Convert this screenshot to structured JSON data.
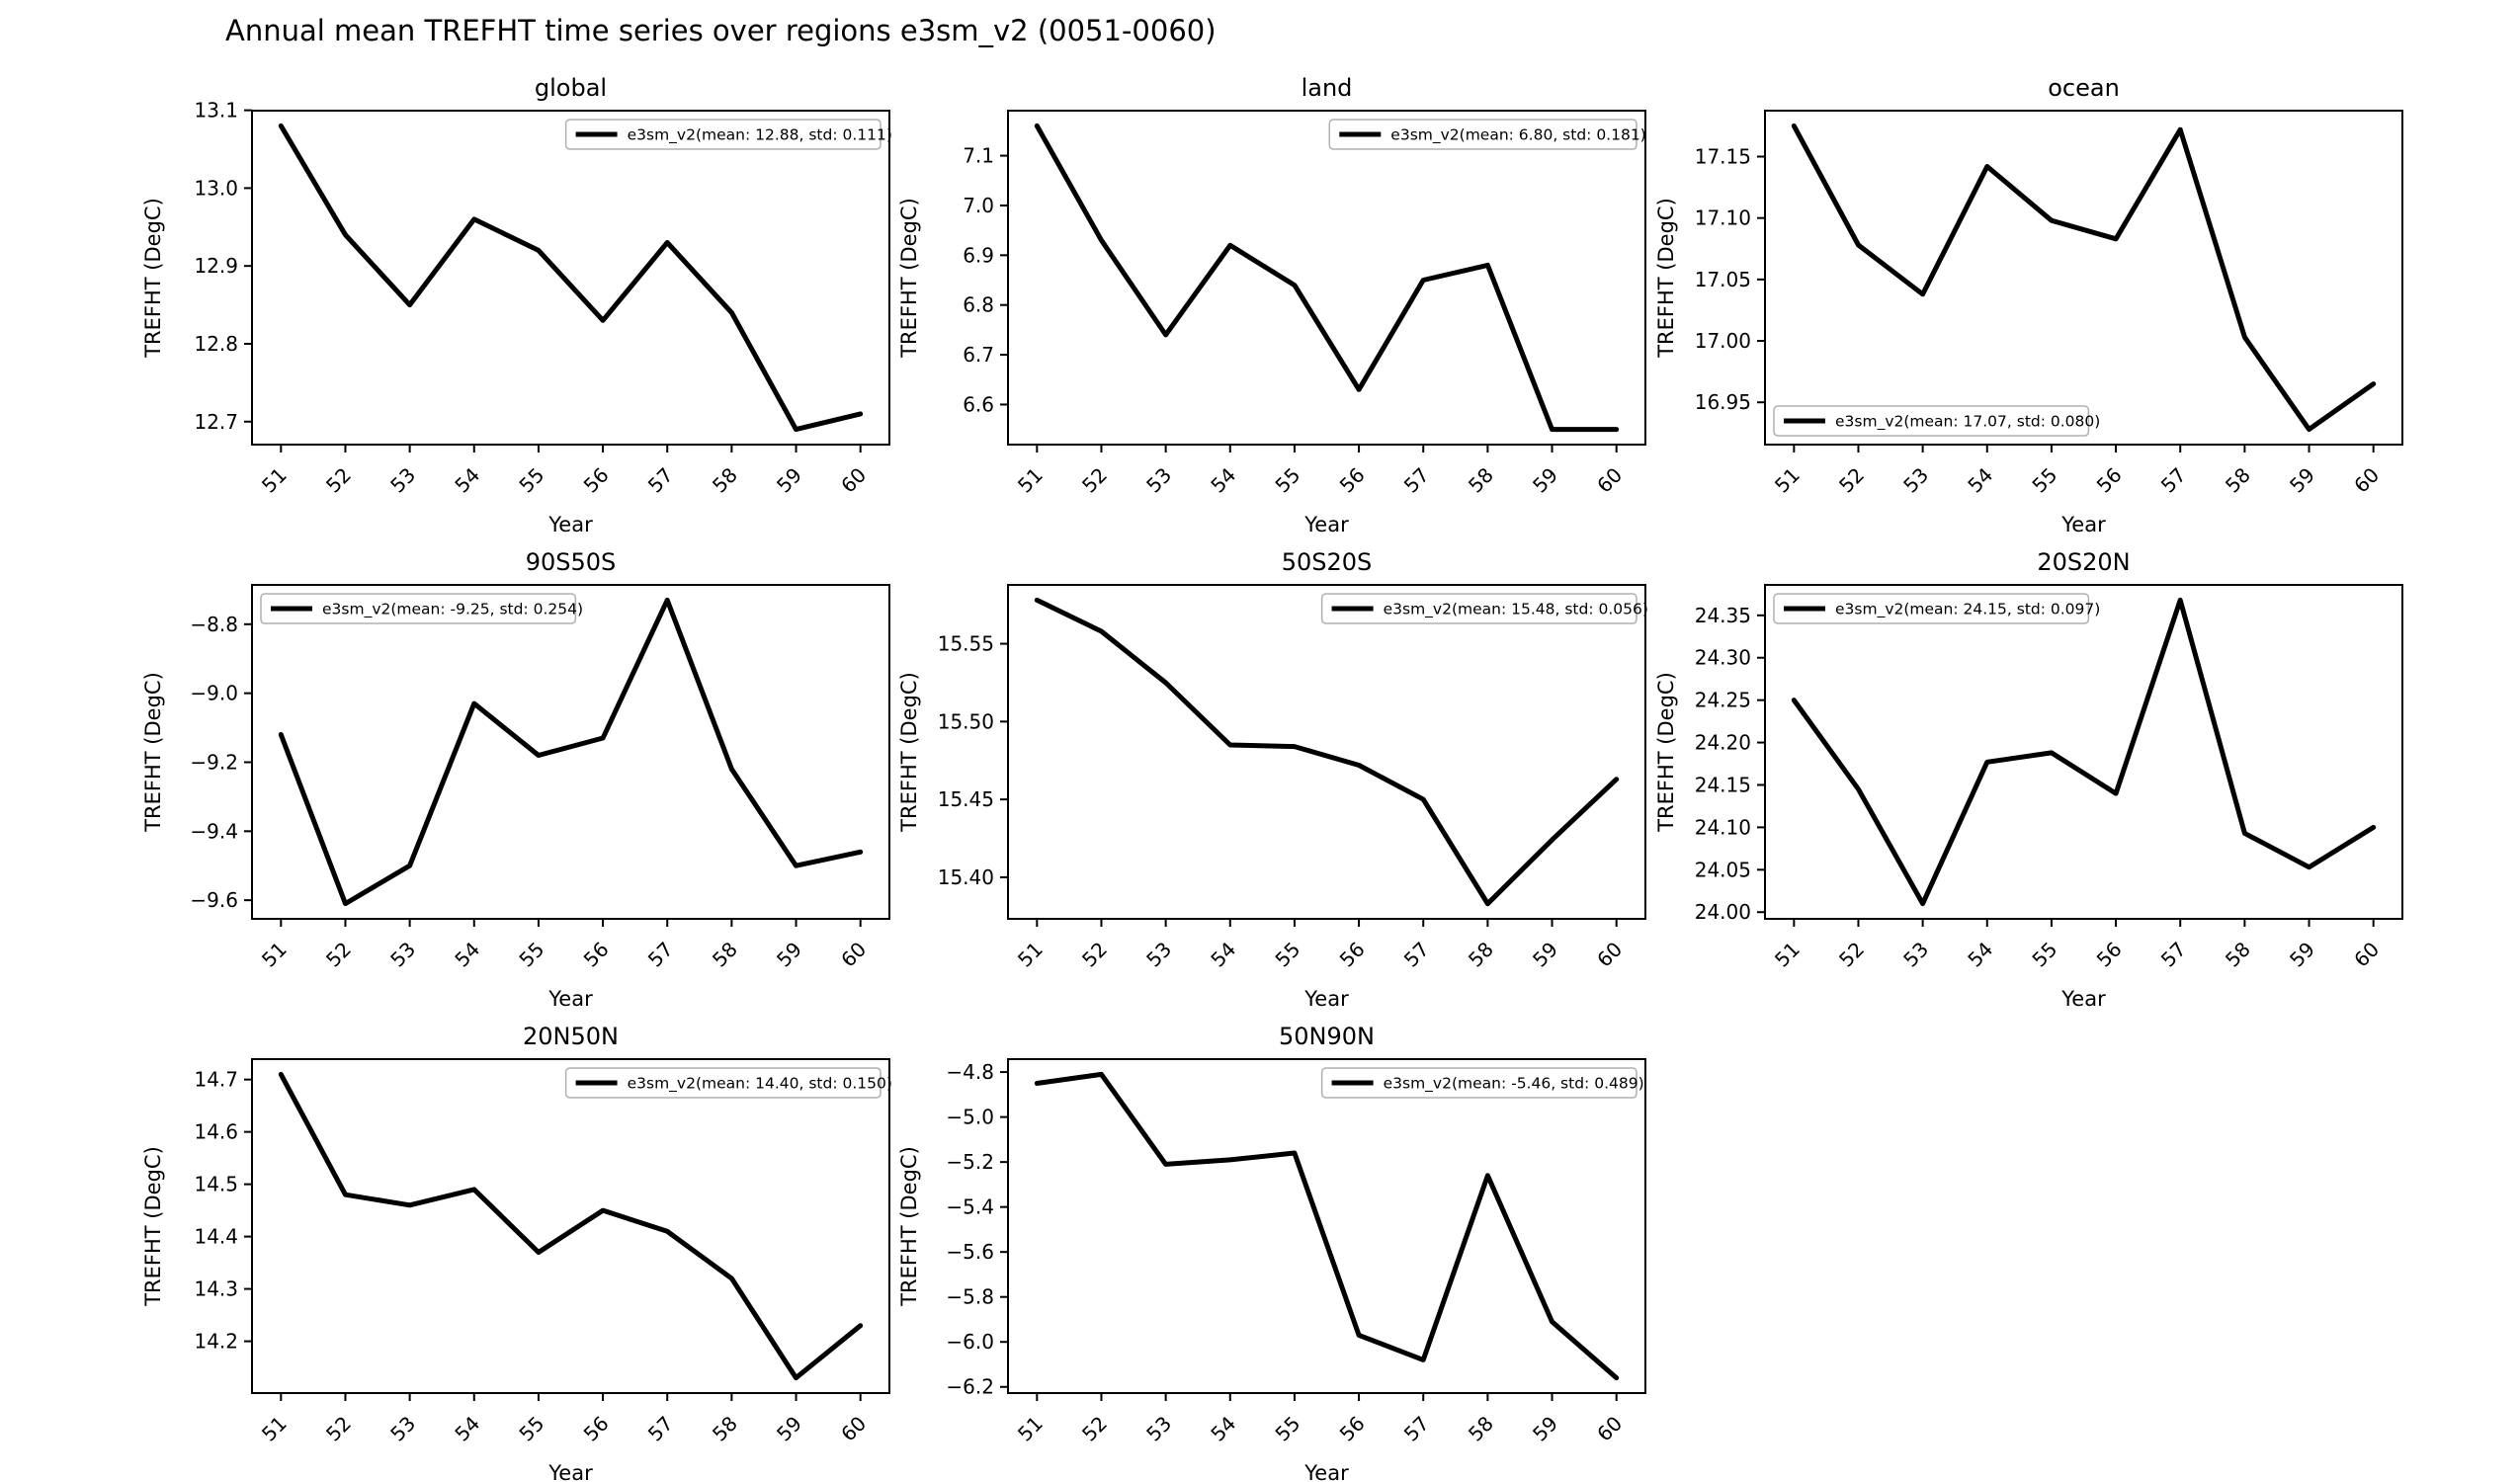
{
  "figure_title": "Annual mean TREFHT time series over regions e3sm_v2 (0051-0060)",
  "series_name": "e3sm_v2",
  "line_color": "#000000",
  "background_color": "#ffffff",
  "legend_border_color": "#b0b0b0",
  "chart_data": [
    {
      "type": "line",
      "title": "global",
      "xlabel": "Year",
      "ylabel": "TREFHT (DegC)",
      "x": [
        51,
        52,
        53,
        54,
        55,
        56,
        57,
        58,
        59,
        60
      ],
      "xtick_labels": [
        "51",
        "52",
        "53",
        "54",
        "55",
        "56",
        "57",
        "58",
        "59",
        "60"
      ],
      "values": [
        13.08,
        12.94,
        12.85,
        12.96,
        12.92,
        12.83,
        12.93,
        12.84,
        12.69,
        12.71
      ],
      "legend_label": "e3sm_v2(mean: 12.88, std: 0.111)",
      "legend_pos": "upper-right",
      "ytick_values": [
        12.7,
        12.8,
        12.9,
        13.0,
        13.1
      ],
      "ytick_labels": [
        "12.7",
        "12.8",
        "12.9",
        "13.0",
        "13.1"
      ],
      "ylim": [
        12.6705,
        13.0995
      ],
      "xlim": [
        50.55,
        60.45
      ],
      "grid": false,
      "row": 0,
      "col": 0
    },
    {
      "type": "line",
      "title": "land",
      "xlabel": "Year",
      "ylabel": "TREFHT (DegC)",
      "x": [
        51,
        52,
        53,
        54,
        55,
        56,
        57,
        58,
        59,
        60
      ],
      "xtick_labels": [
        "51",
        "52",
        "53",
        "54",
        "55",
        "56",
        "57",
        "58",
        "59",
        "60"
      ],
      "values": [
        7.16,
        6.93,
        6.74,
        6.92,
        6.84,
        6.63,
        6.85,
        6.88,
        6.55,
        6.55
      ],
      "legend_label": "e3sm_v2(mean: 6.80, std: 0.181)",
      "legend_pos": "upper-right",
      "ytick_values": [
        6.6,
        6.7,
        6.8,
        6.9,
        7.0,
        7.1
      ],
      "ytick_labels": [
        "6.6",
        "6.7",
        "6.8",
        "6.9",
        "7.0",
        "7.1"
      ],
      "ylim": [
        6.5195,
        7.1905
      ],
      "xlim": [
        50.55,
        60.45
      ],
      "grid": false,
      "row": 0,
      "col": 1
    },
    {
      "type": "line",
      "title": "ocean",
      "xlabel": "Year",
      "ylabel": "TREFHT (DegC)",
      "x": [
        51,
        52,
        53,
        54,
        55,
        56,
        57,
        58,
        59,
        60
      ],
      "xtick_labels": [
        "51",
        "52",
        "53",
        "54",
        "55",
        "56",
        "57",
        "58",
        "59",
        "60"
      ],
      "values": [
        17.175,
        17.078,
        17.038,
        17.142,
        17.098,
        17.083,
        17.172,
        17.003,
        16.928,
        16.965
      ],
      "legend_label": "e3sm_v2(mean: 17.07, std: 0.080)",
      "legend_pos": "lower-left",
      "ytick_values": [
        16.95,
        17.0,
        17.05,
        17.1,
        17.15
      ],
      "ytick_labels": [
        "16.95",
        "17.00",
        "17.05",
        "17.10",
        "17.15"
      ],
      "ylim": [
        16.9156,
        17.1874
      ],
      "xlim": [
        50.55,
        60.45
      ],
      "grid": false,
      "row": 0,
      "col": 2
    },
    {
      "type": "line",
      "title": "90S50S",
      "xlabel": "Year",
      "ylabel": "TREFHT (DegC)",
      "x": [
        51,
        52,
        53,
        54,
        55,
        56,
        57,
        58,
        59,
        60
      ],
      "xtick_labels": [
        "51",
        "52",
        "53",
        "54",
        "55",
        "56",
        "57",
        "58",
        "59",
        "60"
      ],
      "values": [
        -9.12,
        -9.61,
        -9.5,
        -9.03,
        -9.18,
        -9.13,
        -8.73,
        -9.22,
        -9.5,
        -9.46
      ],
      "legend_label": "e3sm_v2(mean: -9.25, std: 0.254)",
      "legend_pos": "upper-left",
      "ytick_values": [
        -9.6,
        -9.4,
        -9.2,
        -9.0,
        -8.8
      ],
      "ytick_labels": [
        "−9.6",
        "−9.4",
        "−9.2",
        "−9.0",
        "−8.8"
      ],
      "ylim": [
        -9.654,
        -8.686
      ],
      "xlim": [
        50.55,
        60.45
      ],
      "grid": false,
      "row": 1,
      "col": 0
    },
    {
      "type": "line",
      "title": "50S20S",
      "xlabel": "Year",
      "ylabel": "TREFHT (DegC)",
      "x": [
        51,
        52,
        53,
        54,
        55,
        56,
        57,
        58,
        59,
        60
      ],
      "xtick_labels": [
        "51",
        "52",
        "53",
        "54",
        "55",
        "56",
        "57",
        "58",
        "59",
        "60"
      ],
      "values": [
        15.578,
        15.558,
        15.525,
        15.485,
        15.484,
        15.472,
        15.45,
        15.383,
        15.424,
        15.463
      ],
      "legend_label": "e3sm_v2(mean: 15.48, std: 0.056)",
      "legend_pos": "upper-right",
      "ytick_values": [
        15.4,
        15.45,
        15.5,
        15.55
      ],
      "ytick_labels": [
        "15.40",
        "15.45",
        "15.50",
        "15.55"
      ],
      "ylim": [
        15.3733,
        15.5878
      ],
      "xlim": [
        50.55,
        60.45
      ],
      "grid": false,
      "row": 1,
      "col": 1
    },
    {
      "type": "line",
      "title": "20S20N",
      "xlabel": "Year",
      "ylabel": "TREFHT (DegC)",
      "x": [
        51,
        52,
        53,
        54,
        55,
        56,
        57,
        58,
        59,
        60
      ],
      "xtick_labels": [
        "51",
        "52",
        "53",
        "54",
        "55",
        "56",
        "57",
        "58",
        "59",
        "60"
      ],
      "values": [
        24.25,
        24.145,
        24.01,
        24.177,
        24.188,
        24.14,
        24.368,
        24.093,
        24.053,
        24.1
      ],
      "legend_label": "e3sm_v2(mean: 24.15, std: 0.097)",
      "legend_pos": "upper-left",
      "ytick_values": [
        24.0,
        24.05,
        24.1,
        24.15,
        24.2,
        24.25,
        24.3,
        24.35
      ],
      "ytick_labels": [
        "24.00",
        "24.05",
        "24.10",
        "24.15",
        "24.20",
        "24.25",
        "24.30",
        "24.35"
      ],
      "ylim": [
        23.9921,
        24.3859
      ],
      "xlim": [
        50.55,
        60.45
      ],
      "grid": false,
      "row": 1,
      "col": 2
    },
    {
      "type": "line",
      "title": "20N50N",
      "xlabel": "Year",
      "ylabel": "TREFHT (DegC)",
      "x": [
        51,
        52,
        53,
        54,
        55,
        56,
        57,
        58,
        59,
        60
      ],
      "xtick_labels": [
        "51",
        "52",
        "53",
        "54",
        "55",
        "56",
        "57",
        "58",
        "59",
        "60"
      ],
      "values": [
        14.71,
        14.48,
        14.46,
        14.49,
        14.37,
        14.45,
        14.41,
        14.32,
        14.13,
        14.23
      ],
      "legend_label": "e3sm_v2(mean: 14.40, std: 0.150)",
      "legend_pos": "upper-right",
      "ytick_values": [
        14.2,
        14.3,
        14.4,
        14.5,
        14.6,
        14.7
      ],
      "ytick_labels": [
        "14.2",
        "14.3",
        "14.4",
        "14.5",
        "14.6",
        "14.7"
      ],
      "ylim": [
        14.101,
        14.739
      ],
      "xlim": [
        50.55,
        60.45
      ],
      "grid": false,
      "row": 2,
      "col": 0
    },
    {
      "type": "line",
      "title": "50N90N",
      "xlabel": "Year",
      "ylabel": "TREFHT (DegC)",
      "x": [
        51,
        52,
        53,
        54,
        55,
        56,
        57,
        58,
        59,
        60
      ],
      "xtick_labels": [
        "51",
        "52",
        "53",
        "54",
        "55",
        "56",
        "57",
        "58",
        "59",
        "60"
      ],
      "values": [
        -4.85,
        -4.81,
        -5.21,
        -5.19,
        -5.16,
        -5.97,
        -6.08,
        -5.26,
        -5.91,
        -6.16
      ],
      "legend_label": "e3sm_v2(mean: -5.46, std: 0.489)",
      "legend_pos": "upper-right",
      "ytick_values": [
        -6.2,
        -6.0,
        -5.8,
        -5.6,
        -5.4,
        -5.2,
        -5.0,
        -4.8
      ],
      "ytick_labels": [
        "−6.2",
        "−6.0",
        "−5.8",
        "−5.6",
        "−5.4",
        "−5.2",
        "−5.0",
        "−4.8"
      ],
      "ylim": [
        -6.2275,
        -4.7425
      ],
      "xlim": [
        50.55,
        60.45
      ],
      "grid": false,
      "row": 2,
      "col": 1
    }
  ]
}
